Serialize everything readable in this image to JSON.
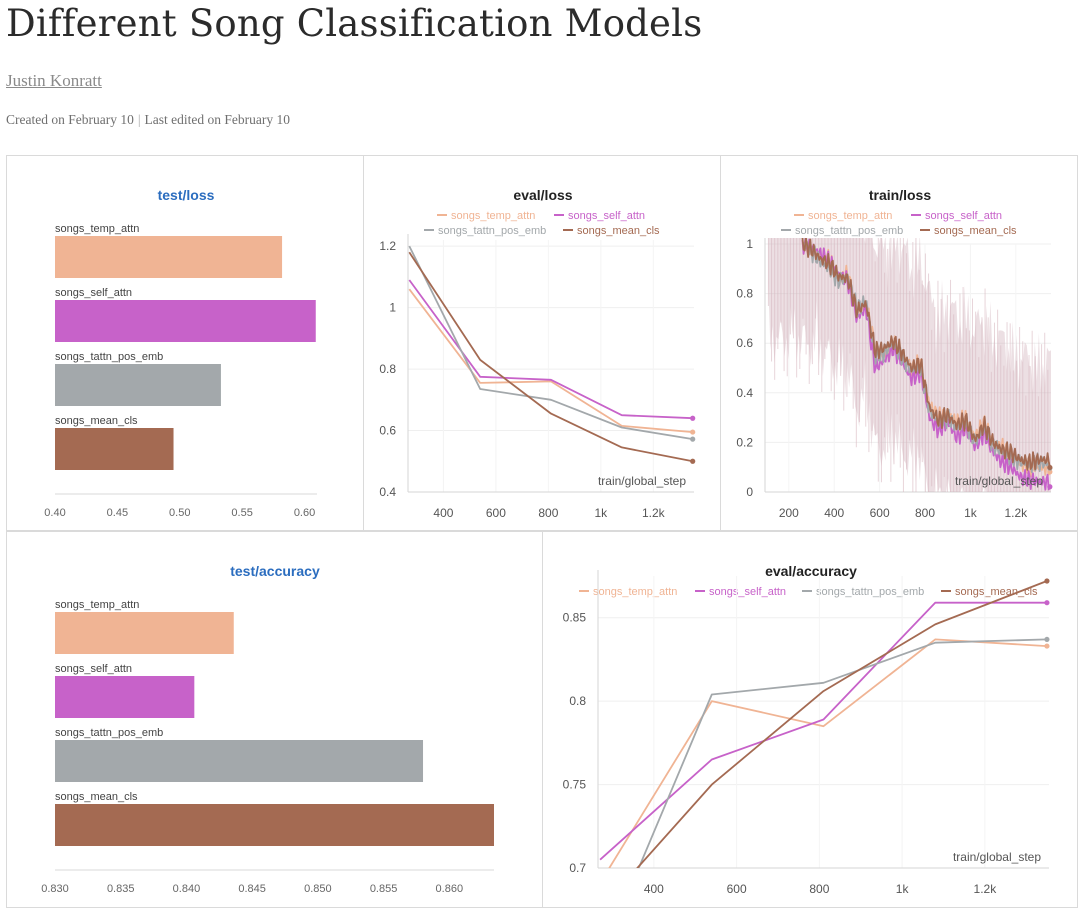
{
  "report": {
    "title": "Different Song Classification Models",
    "author": "Justin Konratt",
    "created": "Created on February 10",
    "edited": "Last edited on February 10"
  },
  "colors": {
    "songs_temp_attn": "#f0b494",
    "songs_self_attn": "#c762c9",
    "songs_tattn_pos_emb": "#a3a8ab",
    "songs_mean_cls": "#a46a52",
    "bar_title": "#2b6dbf"
  },
  "chart_data": [
    {
      "id": "test_loss",
      "type": "bar",
      "title": "test/loss",
      "categories": [
        "songs_temp_attn",
        "songs_self_attn",
        "songs_tattn_pos_emb",
        "songs_mean_cls"
      ],
      "values": [
        0.582,
        0.609,
        0.533,
        0.495
      ],
      "xlim": [
        0.4,
        0.61
      ],
      "ticks": [
        0.4,
        0.45,
        0.5,
        0.55,
        0.6
      ],
      "tick_labels": [
        "0.40",
        "0.45",
        "0.50",
        "0.55",
        "0.60"
      ]
    },
    {
      "id": "eval_loss",
      "type": "line",
      "title": "eval/loss",
      "xlabel": "train/global_step",
      "xlim": [
        265,
        1355
      ],
      "ylim": [
        0.4,
        1.22
      ],
      "xticks": [
        400,
        600,
        800,
        1000,
        1200
      ],
      "xtick_labels": [
        "400",
        "600",
        "800",
        "1k",
        "1.2k"
      ],
      "yticks": [
        0.4,
        0.6,
        0.8,
        1,
        1.2
      ],
      "ytick_labels": [
        "0.4",
        "0.6",
        "0.8",
        "1",
        "1.2"
      ],
      "legend": [
        "songs_temp_attn",
        "songs_self_attn",
        "songs_tattn_pos_emb",
        "songs_mean_cls"
      ],
      "series": [
        {
          "name": "songs_temp_attn",
          "x": [
            270,
            540,
            810,
            1080,
            1350
          ],
          "y": [
            1.06,
            0.755,
            0.76,
            0.615,
            0.595
          ]
        },
        {
          "name": "songs_self_attn",
          "x": [
            270,
            540,
            810,
            1080,
            1350
          ],
          "y": [
            1.09,
            0.775,
            0.765,
            0.65,
            0.64
          ]
        },
        {
          "name": "songs_tattn_pos_emb",
          "x": [
            270,
            540,
            810,
            1080,
            1350
          ],
          "y": [
            1.2,
            0.735,
            0.7,
            0.61,
            0.572
          ]
        },
        {
          "name": "songs_mean_cls",
          "x": [
            270,
            540,
            810,
            1080,
            1350
          ],
          "y": [
            1.18,
            0.83,
            0.655,
            0.545,
            0.5
          ]
        }
      ]
    },
    {
      "id": "train_loss",
      "type": "line",
      "title": "train/loss",
      "xlabel": "train/global_step",
      "xlim": [
        95,
        1355
      ],
      "ylim": [
        0,
        1
      ],
      "xticks": [
        200,
        400,
        600,
        800,
        1000,
        1200
      ],
      "xtick_labels": [
        "200",
        "400",
        "600",
        "800",
        "1k",
        "1.2k"
      ],
      "yticks": [
        0,
        0.2,
        0.4,
        0.6,
        0.8,
        1
      ],
      "ytick_labels": [
        "0",
        "0.2",
        "0.4",
        "0.6",
        "0.8",
        "1"
      ],
      "legend": [
        "songs_temp_attn",
        "songs_self_attn",
        "songs_tattn_pos_emb",
        "songs_mean_cls"
      ],
      "series": [
        {
          "name": "songs_temp_attn",
          "x": [
            260,
            300,
            340,
            380,
            420,
            460,
            500,
            540,
            580,
            620,
            660,
            700,
            740,
            780,
            820,
            860,
            900,
            940,
            980,
            1020,
            1060,
            1100,
            1140,
            1180,
            1220,
            1260,
            1300,
            1350
          ],
          "y": [
            1.0,
            0.98,
            0.95,
            0.94,
            0.86,
            0.88,
            0.72,
            0.76,
            0.58,
            0.55,
            0.6,
            0.55,
            0.5,
            0.52,
            0.35,
            0.3,
            0.32,
            0.28,
            0.3,
            0.22,
            0.28,
            0.2,
            0.18,
            0.15,
            0.12,
            0.1,
            0.1,
            0.1
          ]
        },
        {
          "name": "songs_self_attn",
          "x": [
            260,
            300,
            340,
            380,
            420,
            460,
            500,
            540,
            580,
            620,
            660,
            700,
            740,
            780,
            820,
            860,
            900,
            940,
            980,
            1020,
            1060,
            1100,
            1140,
            1180,
            1220,
            1260,
            1300,
            1350
          ],
          "y": [
            1.0,
            0.99,
            0.96,
            0.93,
            0.88,
            0.85,
            0.7,
            0.74,
            0.5,
            0.53,
            0.58,
            0.52,
            0.46,
            0.48,
            0.3,
            0.25,
            0.28,
            0.22,
            0.26,
            0.18,
            0.24,
            0.16,
            0.12,
            0.1,
            0.06,
            0.05,
            0.04,
            0.04
          ]
        },
        {
          "name": "songs_tattn_pos_emb",
          "x": [
            260,
            300,
            340,
            380,
            420,
            460,
            500,
            540,
            580,
            620,
            660,
            700,
            740,
            780,
            820,
            860,
            900,
            940,
            980,
            1020,
            1060,
            1100,
            1140,
            1180,
            1220,
            1260,
            1300,
            1350
          ],
          "y": [
            1.0,
            0.97,
            0.93,
            0.9,
            0.85,
            0.87,
            0.74,
            0.77,
            0.55,
            0.56,
            0.6,
            0.54,
            0.49,
            0.5,
            0.33,
            0.28,
            0.3,
            0.26,
            0.28,
            0.2,
            0.26,
            0.19,
            0.16,
            0.14,
            0.12,
            0.11,
            0.12,
            0.11
          ]
        },
        {
          "name": "songs_mean_cls",
          "x": [
            260,
            300,
            340,
            380,
            420,
            460,
            500,
            540,
            580,
            620,
            660,
            700,
            740,
            780,
            820,
            860,
            900,
            940,
            980,
            1020,
            1060,
            1100,
            1140,
            1180,
            1220,
            1260,
            1300,
            1350
          ],
          "y": [
            1.0,
            0.98,
            0.94,
            0.92,
            0.87,
            0.86,
            0.73,
            0.76,
            0.57,
            0.58,
            0.61,
            0.56,
            0.5,
            0.52,
            0.34,
            0.29,
            0.31,
            0.27,
            0.29,
            0.21,
            0.27,
            0.2,
            0.17,
            0.16,
            0.13,
            0.12,
            0.13,
            0.13
          ]
        }
      ]
    },
    {
      "id": "test_accuracy",
      "type": "bar",
      "title": "test/accuracy",
      "categories": [
        "songs_temp_attn",
        "songs_self_attn",
        "songs_tattn_pos_emb",
        "songs_mean_cls"
      ],
      "values": [
        0.8436,
        0.8406,
        0.858,
        0.8634
      ],
      "xlim": [
        0.83,
        0.8634
      ],
      "ticks": [
        0.83,
        0.835,
        0.84,
        0.845,
        0.85,
        0.855,
        0.86
      ],
      "tick_labels": [
        "0.830",
        "0.835",
        "0.840",
        "0.845",
        "0.850",
        "0.855",
        "0.860"
      ]
    },
    {
      "id": "eval_accuracy",
      "type": "line",
      "title": "eval/accuracy",
      "xlabel": "train/global_step",
      "xlim": [
        265,
        1355
      ],
      "ylim": [
        0.7,
        0.875
      ],
      "xticks": [
        400,
        600,
        800,
        1000,
        1200
      ],
      "xtick_labels": [
        "400",
        "600",
        "800",
        "1k",
        "1.2k"
      ],
      "yticks": [
        0.7,
        0.75,
        0.8,
        0.85
      ],
      "ytick_labels": [
        "0.7",
        "0.75",
        "0.8",
        "0.85"
      ],
      "legend": [
        "songs_temp_attn",
        "songs_self_attn",
        "songs_tattn_pos_emb",
        "songs_mean_cls"
      ],
      "series": [
        {
          "name": "songs_temp_attn",
          "x": [
            270,
            540,
            810,
            1080,
            1350
          ],
          "y": [
            0.691,
            0.8,
            0.785,
            0.837,
            0.833
          ]
        },
        {
          "name": "songs_self_attn",
          "x": [
            270,
            540,
            810,
            1080,
            1350
          ],
          "y": [
            0.705,
            0.765,
            0.789,
            0.859,
            0.859
          ]
        },
        {
          "name": "songs_tattn_pos_emb",
          "x": [
            270,
            540,
            810,
            1080,
            1350
          ],
          "y": [
            0.645,
            0.804,
            0.811,
            0.835,
            0.837
          ]
        },
        {
          "name": "songs_mean_cls",
          "x": [
            270,
            540,
            810,
            1080,
            1350
          ],
          "y": [
            0.675,
            0.75,
            0.806,
            0.846,
            0.872
          ]
        }
      ]
    }
  ]
}
